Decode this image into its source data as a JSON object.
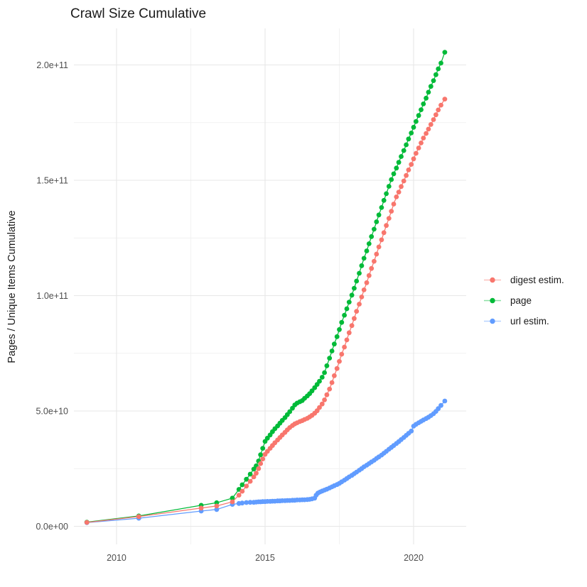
{
  "title": "Crawl Size Cumulative",
  "y_axis_title": "Pages / Unique Items Cumulative",
  "legend": {
    "position": "right",
    "items": [
      {
        "id": "digest",
        "label": "digest estim.",
        "color": "#F8766D"
      },
      {
        "id": "page",
        "label": "page",
        "color": "#00BA38"
      },
      {
        "id": "url",
        "label": "url estim.",
        "color": "#619CFF"
      }
    ]
  },
  "chart_data": {
    "type": "line",
    "title": "Crawl Size Cumulative",
    "xlabel": "",
    "ylabel": "Pages / Unique Items Cumulative",
    "grid": true,
    "legend_position": "right",
    "value_unit": "pages; point values given in billions (1e9)",
    "x_axis": {
      "domain": [
        2008.565,
        2021.77
      ],
      "major_ticks": [
        2010,
        2015,
        2020
      ],
      "tick_labels": [
        "2010",
        "2015",
        "2020"
      ],
      "minor_ticks": [
        2012.5,
        2017.5
      ]
    },
    "y_axis": {
      "domain_e9": [
        -7.85,
        215.85
      ],
      "major_ticks": [
        {
          "value_e9": 0,
          "label": "0.0e+00"
        },
        {
          "value_e9": 50,
          "label": "5.0e+10"
        },
        {
          "value_e9": 100,
          "label": "1.0e+11"
        },
        {
          "value_e9": 150,
          "label": "1.5e+11"
        },
        {
          "value_e9": 200,
          "label": "2.0e+11"
        }
      ],
      "minor_ticks_e9": [
        25,
        75,
        125,
        175
      ]
    },
    "series": [
      {
        "name": "digest estim.",
        "color": "#F8766D",
        "points_year_value_e9": [
          [
            2009.0,
            1.7
          ],
          [
            2010.75,
            4.2
          ],
          [
            2012.85,
            7.9
          ],
          [
            2013.37,
            8.8
          ],
          [
            2013.9,
            10.6
          ],
          [
            2014.12,
            13.5
          ],
          [
            2014.23,
            15.2
          ],
          [
            2014.37,
            17.4
          ],
          [
            2014.5,
            19.5
          ],
          [
            2014.62,
            21.4
          ],
          [
            2014.7,
            23.0
          ],
          [
            2014.78,
            25.0
          ],
          [
            2014.85,
            27.2
          ],
          [
            2014.92,
            29.2
          ],
          [
            2015.0,
            31.2
          ],
          [
            2015.08,
            32.5
          ],
          [
            2015.17,
            33.8
          ],
          [
            2015.25,
            35.0
          ],
          [
            2015.33,
            36.2
          ],
          [
            2015.42,
            37.4
          ],
          [
            2015.5,
            38.5
          ],
          [
            2015.58,
            39.6
          ],
          [
            2015.67,
            40.7
          ],
          [
            2015.75,
            41.8
          ],
          [
            2015.83,
            42.8
          ],
          [
            2015.92,
            43.7
          ],
          [
            2016.0,
            44.4
          ],
          [
            2016.08,
            44.9
          ],
          [
            2016.17,
            45.4
          ],
          [
            2016.25,
            45.8
          ],
          [
            2016.33,
            46.3
          ],
          [
            2016.42,
            46.8
          ],
          [
            2016.5,
            47.4
          ],
          [
            2016.58,
            48.1
          ],
          [
            2016.67,
            49.0
          ],
          [
            2016.75,
            50.1
          ],
          [
            2016.83,
            51.5
          ],
          [
            2016.92,
            53.0
          ],
          [
            2017.0,
            54.8
          ],
          [
            2017.08,
            57.0
          ],
          [
            2017.17,
            59.5
          ],
          [
            2017.25,
            62.3
          ],
          [
            2017.33,
            65.3
          ],
          [
            2017.42,
            68.4
          ],
          [
            2017.5,
            71.5
          ],
          [
            2017.58,
            74.6
          ],
          [
            2017.67,
            77.7
          ],
          [
            2017.75,
            80.8
          ],
          [
            2017.83,
            83.9
          ],
          [
            2017.92,
            87.0
          ],
          [
            2018.0,
            90.1
          ],
          [
            2018.08,
            93.2
          ],
          [
            2018.17,
            96.3
          ],
          [
            2018.25,
            99.4
          ],
          [
            2018.33,
            102.5
          ],
          [
            2018.42,
            105.6
          ],
          [
            2018.5,
            108.7
          ],
          [
            2018.58,
            111.8
          ],
          [
            2018.67,
            114.9
          ],
          [
            2018.75,
            118.0
          ],
          [
            2018.83,
            121.1
          ],
          [
            2018.92,
            124.2
          ],
          [
            2019.0,
            127.3
          ],
          [
            2019.08,
            130.4
          ],
          [
            2019.17,
            133.5
          ],
          [
            2019.25,
            136.6
          ],
          [
            2019.33,
            139.7
          ],
          [
            2019.42,
            142.8
          ],
          [
            2019.5,
            144.9
          ],
          [
            2019.58,
            147.3
          ],
          [
            2019.67,
            149.7
          ],
          [
            2019.75,
            152.1
          ],
          [
            2019.83,
            154.5
          ],
          [
            2019.92,
            156.9
          ],
          [
            2020.0,
            159.3
          ],
          [
            2020.08,
            161.7
          ],
          [
            2020.17,
            164.0
          ],
          [
            2020.25,
            166.2
          ],
          [
            2020.33,
            168.3
          ],
          [
            2020.42,
            170.3
          ],
          [
            2020.5,
            172.2
          ],
          [
            2020.58,
            174.2
          ],
          [
            2020.67,
            176.3
          ],
          [
            2020.75,
            178.4
          ],
          [
            2020.83,
            180.5
          ],
          [
            2020.92,
            182.6
          ],
          [
            2021.05,
            185.2
          ]
        ]
      },
      {
        "name": "page",
        "color": "#00BA38",
        "points_year_value_e9": [
          [
            2009.0,
            1.8
          ],
          [
            2010.75,
            4.5
          ],
          [
            2012.85,
            9.1
          ],
          [
            2013.37,
            10.2
          ],
          [
            2013.9,
            12.2
          ],
          [
            2014.12,
            16.0
          ],
          [
            2014.23,
            18.0
          ],
          [
            2014.37,
            20.4
          ],
          [
            2014.5,
            22.6
          ],
          [
            2014.62,
            24.8
          ],
          [
            2014.7,
            26.2
          ],
          [
            2014.78,
            28.3
          ],
          [
            2014.85,
            31.0
          ],
          [
            2014.92,
            33.8
          ],
          [
            2015.0,
            36.8
          ],
          [
            2015.08,
            38.2
          ],
          [
            2015.17,
            39.6
          ],
          [
            2015.25,
            41.0
          ],
          [
            2015.33,
            42.3
          ],
          [
            2015.42,
            43.5
          ],
          [
            2015.5,
            44.7
          ],
          [
            2015.58,
            45.9
          ],
          [
            2015.67,
            47.1
          ],
          [
            2015.75,
            48.4
          ],
          [
            2015.83,
            49.7
          ],
          [
            2015.92,
            51.2
          ],
          [
            2016.0,
            52.6
          ],
          [
            2016.08,
            53.4
          ],
          [
            2016.17,
            54.0
          ],
          [
            2016.25,
            54.5
          ],
          [
            2016.33,
            55.5
          ],
          [
            2016.42,
            56.5
          ],
          [
            2016.5,
            57.5
          ],
          [
            2016.58,
            58.7
          ],
          [
            2016.67,
            60.1
          ],
          [
            2016.75,
            61.5
          ],
          [
            2016.83,
            62.9
          ],
          [
            2016.92,
            64.6
          ],
          [
            2017.0,
            66.6
          ],
          [
            2017.08,
            69.6
          ],
          [
            2017.17,
            72.9
          ],
          [
            2017.25,
            76.0
          ],
          [
            2017.33,
            79.0
          ],
          [
            2017.42,
            82.2
          ],
          [
            2017.5,
            85.3
          ],
          [
            2017.58,
            88.4
          ],
          [
            2017.67,
            91.5
          ],
          [
            2017.75,
            94.3
          ],
          [
            2017.83,
            97.2
          ],
          [
            2017.92,
            100.2
          ],
          [
            2018.0,
            103.2
          ],
          [
            2018.08,
            106.3
          ],
          [
            2018.17,
            109.7
          ],
          [
            2018.25,
            113.0
          ],
          [
            2018.33,
            116.2
          ],
          [
            2018.42,
            119.4
          ],
          [
            2018.5,
            122.5
          ],
          [
            2018.58,
            125.6
          ],
          [
            2018.67,
            128.8
          ],
          [
            2018.75,
            132.0
          ],
          [
            2018.83,
            135.0
          ],
          [
            2018.92,
            138.2
          ],
          [
            2019.0,
            141.3
          ],
          [
            2019.08,
            144.2
          ],
          [
            2019.17,
            147.4
          ],
          [
            2019.25,
            150.3
          ],
          [
            2019.33,
            152.8
          ],
          [
            2019.42,
            155.3
          ],
          [
            2019.5,
            157.8
          ],
          [
            2019.58,
            160.3
          ],
          [
            2019.67,
            162.9
          ],
          [
            2019.75,
            165.4
          ],
          [
            2019.83,
            167.9
          ],
          [
            2019.92,
            170.5
          ],
          [
            2020.0,
            173.0
          ],
          [
            2020.08,
            175.5
          ],
          [
            2020.17,
            178.1
          ],
          [
            2020.25,
            180.6
          ],
          [
            2020.33,
            183.1
          ],
          [
            2020.42,
            185.6
          ],
          [
            2020.5,
            188.2
          ],
          [
            2020.58,
            190.7
          ],
          [
            2020.67,
            193.2
          ],
          [
            2020.75,
            195.8
          ],
          [
            2020.83,
            198.3
          ],
          [
            2020.92,
            200.8
          ],
          [
            2021.05,
            205.5
          ]
        ]
      },
      {
        "name": "url estim.",
        "color": "#619CFF",
        "points_year_value_e9": [
          [
            2009.0,
            1.6
          ],
          [
            2010.75,
            3.5
          ],
          [
            2012.85,
            6.6
          ],
          [
            2013.37,
            7.3
          ],
          [
            2013.9,
            9.5
          ],
          [
            2014.12,
            9.9
          ],
          [
            2014.23,
            10.1
          ],
          [
            2014.37,
            10.3
          ],
          [
            2014.5,
            10.4
          ],
          [
            2014.62,
            10.4
          ],
          [
            2014.7,
            10.5
          ],
          [
            2014.78,
            10.6
          ],
          [
            2014.85,
            10.6
          ],
          [
            2014.92,
            10.7
          ],
          [
            2015.0,
            10.7
          ],
          [
            2015.08,
            10.8
          ],
          [
            2015.17,
            10.8
          ],
          [
            2015.25,
            10.9
          ],
          [
            2015.33,
            10.9
          ],
          [
            2015.42,
            11.0
          ],
          [
            2015.5,
            11.0
          ],
          [
            2015.58,
            11.1
          ],
          [
            2015.67,
            11.1
          ],
          [
            2015.75,
            11.2
          ],
          [
            2015.83,
            11.2
          ],
          [
            2015.92,
            11.3
          ],
          [
            2016.0,
            11.3
          ],
          [
            2016.08,
            11.4
          ],
          [
            2016.17,
            11.4
          ],
          [
            2016.25,
            11.5
          ],
          [
            2016.33,
            11.5
          ],
          [
            2016.42,
            11.6
          ],
          [
            2016.5,
            11.7
          ],
          [
            2016.58,
            11.9
          ],
          [
            2016.67,
            12.2
          ],
          [
            2016.72,
            13.5
          ],
          [
            2016.78,
            14.4
          ],
          [
            2016.85,
            14.9
          ],
          [
            2016.92,
            15.3
          ],
          [
            2017.0,
            15.7
          ],
          [
            2017.08,
            16.1
          ],
          [
            2017.17,
            16.6
          ],
          [
            2017.25,
            17.1
          ],
          [
            2017.33,
            17.6
          ],
          [
            2017.42,
            18.1
          ],
          [
            2017.5,
            18.6
          ],
          [
            2017.58,
            19.3
          ],
          [
            2017.67,
            20.0
          ],
          [
            2017.75,
            20.7
          ],
          [
            2017.83,
            21.4
          ],
          [
            2017.92,
            22.1
          ],
          [
            2018.0,
            22.8
          ],
          [
            2018.08,
            23.5
          ],
          [
            2018.17,
            24.3
          ],
          [
            2018.25,
            25.0
          ],
          [
            2018.33,
            25.8
          ],
          [
            2018.42,
            26.5
          ],
          [
            2018.5,
            27.2
          ],
          [
            2018.58,
            27.9
          ],
          [
            2018.67,
            28.6
          ],
          [
            2018.75,
            29.4
          ],
          [
            2018.83,
            30.1
          ],
          [
            2018.92,
            30.9
          ],
          [
            2019.0,
            31.7
          ],
          [
            2019.08,
            32.5
          ],
          [
            2019.17,
            33.4
          ],
          [
            2019.25,
            34.2
          ],
          [
            2019.33,
            35.0
          ],
          [
            2019.42,
            35.9
          ],
          [
            2019.5,
            36.7
          ],
          [
            2019.58,
            37.6
          ],
          [
            2019.67,
            38.5
          ],
          [
            2019.75,
            39.4
          ],
          [
            2019.83,
            40.3
          ],
          [
            2019.92,
            41.3
          ],
          [
            2020.0,
            43.4
          ],
          [
            2020.08,
            44.2
          ],
          [
            2020.17,
            44.9
          ],
          [
            2020.25,
            45.5
          ],
          [
            2020.33,
            46.1
          ],
          [
            2020.42,
            46.7
          ],
          [
            2020.5,
            47.3
          ],
          [
            2020.58,
            48.0
          ],
          [
            2020.67,
            48.8
          ],
          [
            2020.75,
            49.8
          ],
          [
            2020.83,
            51.0
          ],
          [
            2020.92,
            52.4
          ],
          [
            2021.05,
            54.3
          ]
        ]
      }
    ]
  }
}
